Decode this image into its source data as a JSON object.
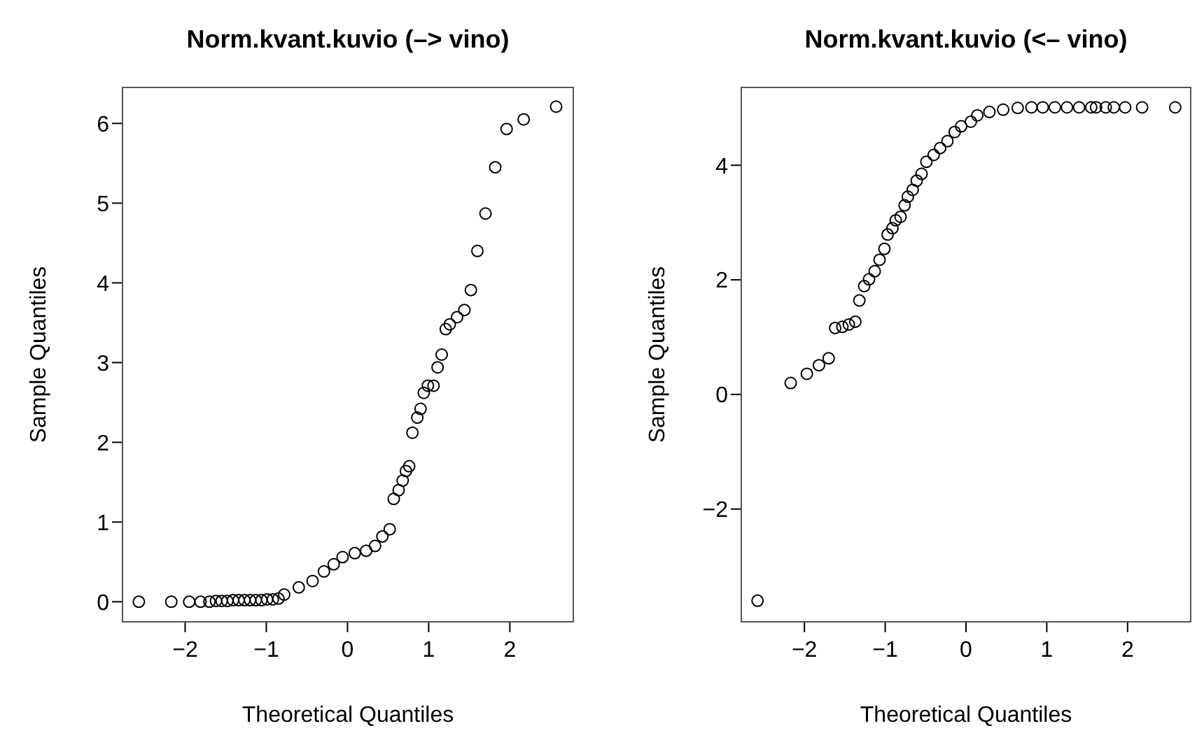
{
  "chart_data": [
    {
      "type": "scatter",
      "title": "Norm.kvant.kuvio (–> vino)",
      "xlabel": "Theoretical Quantiles",
      "ylabel": "Sample Quantiles",
      "marker": "circle",
      "grid": false,
      "legend": false,
      "xlim": [
        -2.78,
        2.79
      ],
      "ylim": [
        -0.26,
        6.46
      ],
      "xticks": [
        -2,
        -1,
        0,
        1,
        2
      ],
      "yticks": [
        0,
        1,
        2,
        3,
        4,
        5,
        6
      ],
      "series": [
        {
          "color": "#000000",
          "x": [
            -2.57,
            -2.17,
            -1.95,
            -1.81,
            -1.7,
            -1.62,
            -1.55,
            -1.48,
            -1.41,
            -1.34,
            -1.27,
            -1.2,
            -1.13,
            -1.06,
            -0.99,
            -0.92,
            -0.85,
            -0.78,
            -0.6,
            -0.43,
            -0.29,
            -0.17,
            -0.06,
            0.09,
            0.23,
            0.34,
            0.43,
            0.52,
            0.57,
            0.63,
            0.68,
            0.72,
            0.76,
            0.8,
            0.86,
            0.9,
            0.94,
            0.99,
            1.06,
            1.11,
            1.16,
            1.21,
            1.26,
            1.35,
            1.44,
            1.52,
            1.6,
            1.7,
            1.82,
            1.96,
            2.17,
            2.57
          ],
          "values": [
            0,
            0,
            0,
            0,
            0,
            0.01,
            0.01,
            0.01,
            0.02,
            0.02,
            0.02,
            0.02,
            0.02,
            0.02,
            0.03,
            0.03,
            0.04,
            0.09,
            0.18,
            0.26,
            0.38,
            0.47,
            0.56,
            0.61,
            0.64,
            0.7,
            0.82,
            0.91,
            1.29,
            1.4,
            1.52,
            1.64,
            1.7,
            2.12,
            2.31,
            2.42,
            2.62,
            2.71,
            2.71,
            2.94,
            3.1,
            3.42,
            3.48,
            3.57,
            3.66,
            3.91,
            4.4,
            4.87,
            5.45,
            5.93,
            6.05,
            6.21
          ]
        }
      ]
    },
    {
      "type": "scatter",
      "title": "Norm.kvant.kuvio (<– vino)",
      "xlabel": "Theoretical Quantiles",
      "ylabel": "Sample Quantiles",
      "marker": "circle",
      "grid": false,
      "legend": false,
      "xlim": [
        -2.79,
        2.79
      ],
      "ylim": [
        -3.98,
        5.37
      ],
      "xticks": [
        -2,
        -1,
        0,
        1,
        2
      ],
      "yticks": [
        -2,
        0,
        2,
        4
      ],
      "series": [
        {
          "color": "#000000",
          "x": [
            -2.58,
            -2.17,
            -1.97,
            -1.82,
            -1.7,
            -1.62,
            -1.53,
            -1.45,
            -1.37,
            -1.32,
            -1.26,
            -1.2,
            -1.13,
            -1.07,
            -1.01,
            -0.97,
            -0.91,
            -0.87,
            -0.81,
            -0.76,
            -0.72,
            -0.66,
            -0.61,
            -0.55,
            -0.49,
            -0.4,
            -0.32,
            -0.23,
            -0.14,
            -0.06,
            0.06,
            0.14,
            0.29,
            0.46,
            0.64,
            0.81,
            0.95,
            1.1,
            1.25,
            1.4,
            1.55,
            1.61,
            1.73,
            1.83,
            1.97,
            2.18,
            2.59
          ],
          "values": [
            -3.6,
            0.2,
            0.36,
            0.51,
            0.63,
            1.16,
            1.18,
            1.22,
            1.27,
            1.64,
            1.89,
            2.01,
            2.15,
            2.35,
            2.54,
            2.79,
            2.9,
            3.04,
            3.1,
            3.3,
            3.45,
            3.57,
            3.73,
            3.85,
            4.06,
            4.18,
            4.3,
            4.42,
            4.58,
            4.68,
            4.76,
            4.87,
            4.93,
            4.97,
            5,
            5.01,
            5.01,
            5.01,
            5.01,
            5.01,
            5.01,
            5.01,
            5.01,
            5.01,
            5.01,
            5.01,
            5.01
          ]
        }
      ]
    }
  ]
}
